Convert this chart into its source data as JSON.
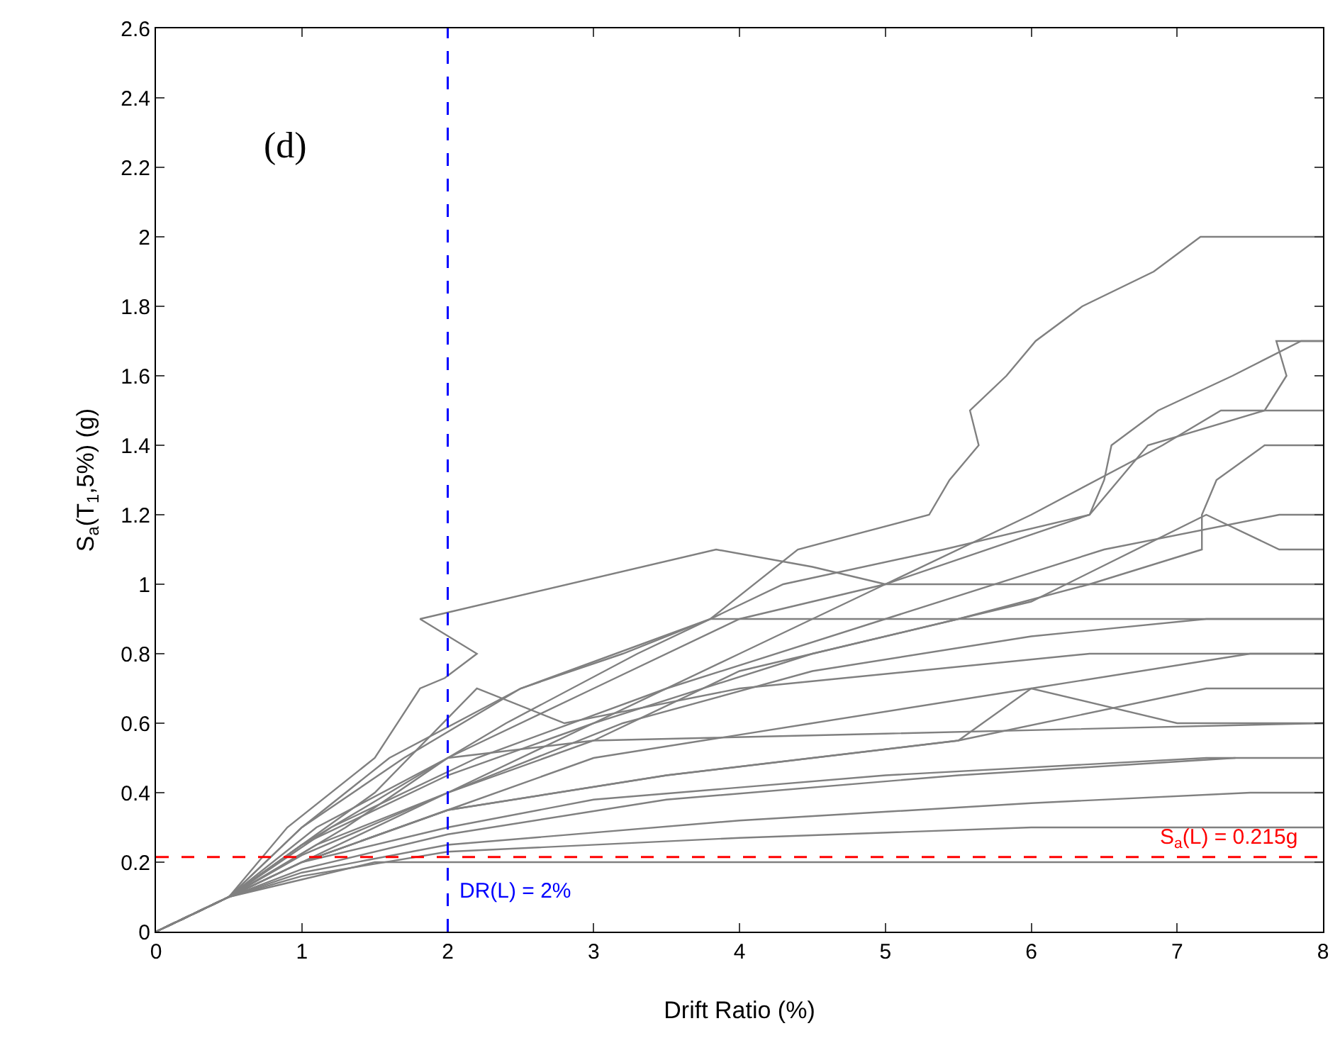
{
  "chart_data": {
    "type": "line",
    "xlabel": "Drift Ratio (%)",
    "ylabel": "S$_{a}$(T$_{1}$,5%) (g)",
    "xlim": [
      0,
      8
    ],
    "xticks": [
      0,
      1,
      2,
      3,
      4,
      5,
      6,
      7,
      8
    ],
    "ylim": [
      0,
      2.6
    ],
    "yticks": [
      0,
      0.2,
      0.4,
      0.6,
      0.8,
      1,
      1.2,
      1.4,
      1.6,
      1.8,
      2,
      2.2,
      2.4,
      2.6
    ],
    "grid": false,
    "marker": "none",
    "line_style": "solid",
    "annotations": [
      "(d)"
    ],
    "ref_lines": [
      {
        "axis": "x",
        "value": 2,
        "label": "DR(L) = 2%",
        "color": "#0000ff",
        "line_style": "dashed"
      },
      {
        "axis": "y",
        "value": 0.215,
        "label": "S$_{a}$(L) = 0.215g",
        "color": "#ff0000",
        "line_style": "dashed"
      }
    ],
    "series": [
      {
        "color": "#808080",
        "x": [
          0,
          0.5,
          1,
          1.7,
          2.5,
          3.2,
          3.8,
          4.4,
          5.3,
          5.44,
          5.64,
          5.58,
          5.83,
          6.03,
          6.35,
          6.84,
          7.16,
          8
        ],
        "values": [
          0,
          0.1,
          0.3,
          0.5,
          0.7,
          0.8,
          0.9,
          1.1,
          1.2,
          1.3,
          1.4,
          1.5,
          1.6,
          1.7,
          1.8,
          1.9,
          2,
          2
        ]
      },
      {
        "color": "#808080",
        "x": [
          0,
          0.5,
          1,
          1.6,
          2.4,
          3.3,
          4.3,
          5.4,
          6.4,
          6.5,
          6.55,
          6.87,
          7.38,
          7.85,
          8
        ],
        "values": [
          0,
          0.1,
          0.25,
          0.4,
          0.6,
          0.8,
          1,
          1.1,
          1.2,
          1.3,
          1.4,
          1.5,
          1.6,
          1.7,
          1.7
        ]
      },
      {
        "color": "#808080",
        "x": [
          0,
          0.5,
          1.1,
          2,
          3,
          4,
          5,
          6.4,
          6.8,
          7.6,
          7.75,
          7.68,
          8
        ],
        "values": [
          0,
          0.1,
          0.3,
          0.5,
          0.7,
          0.9,
          1,
          1.2,
          1.4,
          1.5,
          1.6,
          1.7,
          1.7
        ]
      },
      {
        "color": "#808080",
        "x": [
          0,
          0.5,
          1,
          2,
          3,
          4,
          5,
          6,
          6.9,
          7.3,
          8
        ],
        "values": [
          0,
          0.1,
          0.2,
          0.4,
          0.6,
          0.8,
          1,
          1.2,
          1.4,
          1.5,
          1.5
        ]
      },
      {
        "color": "#808080",
        "x": [
          0,
          0.5,
          1,
          2,
          3,
          4,
          5.5,
          6.4,
          7.17,
          7.17,
          7.27,
          7.6,
          8
        ],
        "values": [
          0,
          0.1,
          0.22,
          0.4,
          0.55,
          0.75,
          0.9,
          1,
          1.1,
          1.2,
          1.3,
          1.4,
          1.4
        ]
      },
      {
        "color": "#808080",
        "x": [
          0,
          0.5,
          1.2,
          2.2,
          3.5,
          5,
          6.5,
          7.7,
          8
        ],
        "values": [
          0,
          0.1,
          0.3,
          0.5,
          0.7,
          0.9,
          1.1,
          1.2,
          1.2
        ]
      },
      {
        "color": "#808080",
        "x": [
          0,
          0.5,
          1,
          2,
          3,
          4.5,
          6,
          7.2,
          7.7,
          8
        ],
        "values": [
          0,
          0.1,
          0.25,
          0.45,
          0.6,
          0.8,
          0.95,
          1.2,
          1.1,
          1.1
        ]
      },
      {
        "color": "#808080",
        "x": [
          0,
          0.5,
          0.9,
          1.5,
          1.81,
          1.98,
          2.2,
          1.81,
          3.84,
          4.5,
          5,
          8
        ],
        "values": [
          0,
          0.1,
          0.3,
          0.5,
          0.7,
          0.73,
          0.8,
          0.9,
          1.1,
          1.05,
          1,
          1
        ]
      },
      {
        "color": "#808080",
        "x": [
          0,
          0.5,
          1,
          1.6,
          2.5,
          3.8,
          8
        ],
        "values": [
          0,
          0.1,
          0.3,
          0.5,
          0.7,
          0.9,
          0.9
        ]
      },
      {
        "color": "#808080",
        "x": [
          0,
          0.5,
          1.1,
          2,
          3.2,
          4.5,
          6,
          7.2,
          8
        ],
        "values": [
          0,
          0.1,
          0.25,
          0.4,
          0.6,
          0.75,
          0.85,
          0.9,
          0.9
        ]
      },
      {
        "color": "#808080",
        "x": [
          0,
          0.5,
          1,
          1.5,
          2.2,
          2.8,
          4,
          6.4,
          8
        ],
        "values": [
          0,
          0.1,
          0.25,
          0.4,
          0.7,
          0.6,
          0.7,
          0.8,
          0.8
        ]
      },
      {
        "color": "#808080",
        "x": [
          0,
          0.5,
          1,
          2,
          3,
          4.5,
          6,
          7.5,
          8
        ],
        "values": [
          0,
          0.1,
          0.2,
          0.35,
          0.5,
          0.6,
          0.7,
          0.8,
          0.8
        ]
      },
      {
        "color": "#808080",
        "x": [
          0,
          0.5,
          1,
          2,
          3.5,
          5.5,
          6,
          7,
          8
        ],
        "values": [
          0,
          0.1,
          0.2,
          0.35,
          0.45,
          0.55,
          0.7,
          0.6,
          0.6
        ]
      },
      {
        "color": "#808080",
        "x": [
          0,
          0.5,
          1,
          2,
          3.5,
          5.5,
          7.2,
          8
        ],
        "values": [
          0,
          0.1,
          0.2,
          0.35,
          0.45,
          0.55,
          0.7,
          0.7
        ]
      },
      {
        "color": "#808080",
        "x": [
          0,
          0.5,
          1.3,
          2,
          3,
          5,
          8
        ],
        "values": [
          0,
          0.1,
          0.3,
          0.5,
          0.55,
          0.57,
          0.6
        ]
      },
      {
        "color": "#808080",
        "x": [
          0,
          0.5,
          1,
          2,
          3,
          5,
          7.2,
          8
        ],
        "values": [
          0,
          0.1,
          0.2,
          0.3,
          0.38,
          0.45,
          0.5,
          0.5
        ]
      },
      {
        "color": "#808080",
        "x": [
          0,
          0.5,
          1,
          2,
          3.5,
          5.5,
          7.4
        ],
        "values": [
          0,
          0.1,
          0.18,
          0.28,
          0.38,
          0.45,
          0.5
        ]
      },
      {
        "color": "#808080",
        "x": [
          0,
          0.5,
          1,
          2,
          4,
          6,
          7.5,
          8
        ],
        "values": [
          0,
          0.1,
          0.17,
          0.25,
          0.32,
          0.37,
          0.4,
          0.4
        ]
      },
      {
        "color": "#808080",
        "x": [
          0,
          0.5,
          1,
          2,
          4,
          6,
          8
        ],
        "values": [
          0,
          0.1,
          0.16,
          0.23,
          0.27,
          0.3,
          0.3
        ]
      },
      {
        "color": "#808080",
        "x": [
          0,
          0.5,
          1,
          1.5,
          8
        ],
        "values": [
          0,
          0.1,
          0.15,
          0.2,
          0.2
        ]
      }
    ]
  }
}
